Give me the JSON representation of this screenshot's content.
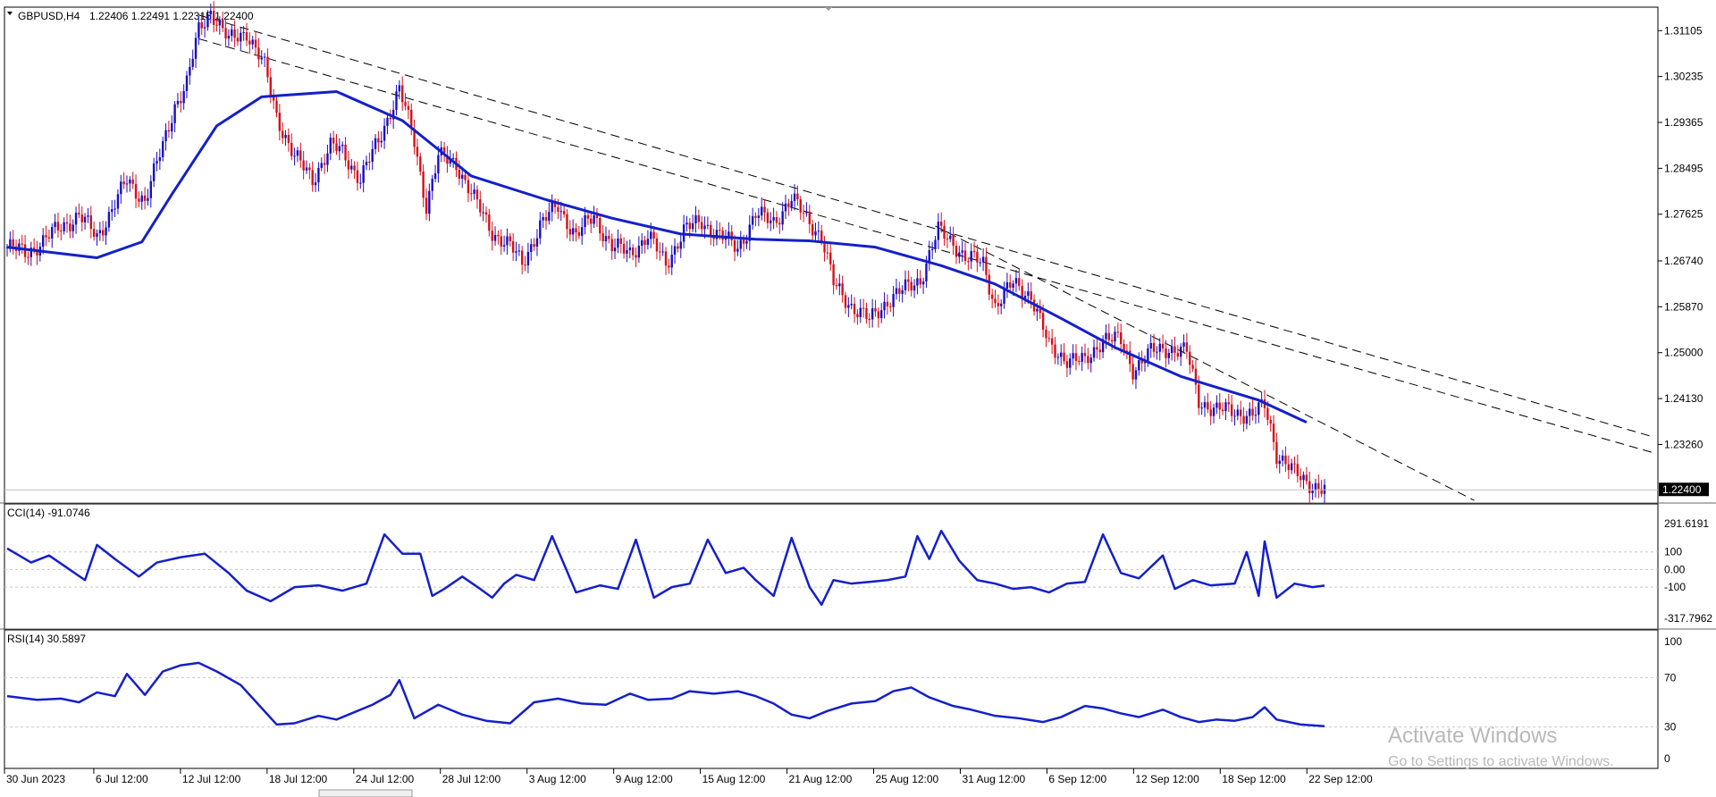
{
  "window": {
    "symbol_header": "GBPUSD,H4",
    "ohlc": "1.22406 1.22491 1.22315 1.22400",
    "bid_price": "1.22400"
  },
  "watermark": {
    "line1": "Activate Windows",
    "line2": "Go to Settings to activate Windows."
  },
  "colors": {
    "bull": "#1a0dbf",
    "bear": "#d4101a",
    "ma": "#1420c8",
    "osc": "#1420c8",
    "grid_dash": "#c8c8c8",
    "border": "#000000"
  },
  "chart_data": [
    {
      "type": "candlestick",
      "symbol": "GBPUSD",
      "timeframe": "H4",
      "x_labels": [
        "30 Jun 2023",
        "6 Jul 12:00",
        "12 Jul 12:00",
        "18 Jul 12:00",
        "24 Jul 12:00",
        "28 Jul 12:00",
        "3 Aug 12:00",
        "9 Aug 12:00",
        "15 Aug 12:00",
        "21 Aug 12:00",
        "25 Aug 12:00",
        "31 Aug 12:00",
        "6 Sep 12:00",
        "12 Sep 12:00",
        "18 Sep 12:00",
        "22 Sep 12:00"
      ],
      "y_ticks": [
        "1.31105",
        "1.30235",
        "1.29365",
        "1.28495",
        "1.27625",
        "1.26740",
        "1.25870",
        "1.25000",
        "1.24130",
        "1.23260"
      ],
      "ylim": [
        1.2215,
        1.3155
      ],
      "current_price": 1.224,
      "close_path": [
        [
          0,
          1.27
        ],
        [
          6,
          1.269
        ],
        [
          12,
          1.271
        ],
        [
          18,
          1.274
        ],
        [
          24,
          1.276
        ],
        [
          30,
          1.272
        ],
        [
          40,
          1.2825
        ],
        [
          46,
          1.279
        ],
        [
          52,
          1.289
        ],
        [
          56,
          1.297
        ],
        [
          60,
          1.301
        ],
        [
          64,
          1.311
        ],
        [
          68,
          1.315
        ],
        [
          74,
          1.309
        ],
        [
          80,
          1.311
        ],
        [
          86,
          1.304
        ],
        [
          90,
          1.295
        ],
        [
          96,
          1.287
        ],
        [
          102,
          1.283
        ],
        [
          108,
          1.289
        ],
        [
          112,
          1.288
        ],
        [
          118,
          1.283
        ],
        [
          124,
          1.29
        ],
        [
          128,
          1.296
        ],
        [
          131,
          1.3
        ],
        [
          136,
          1.29
        ],
        [
          140,
          1.278
        ],
        [
          144,
          1.287
        ],
        [
          150,
          1.286
        ],
        [
          156,
          1.279
        ],
        [
          162,
          1.273
        ],
        [
          168,
          1.27
        ],
        [
          172,
          1.267
        ],
        [
          178,
          1.274
        ],
        [
          184,
          1.278
        ],
        [
          190,
          1.272
        ],
        [
          196,
          1.276
        ],
        [
          202,
          1.27
        ],
        [
          208,
          1.269
        ],
        [
          214,
          1.272
        ],
        [
          220,
          1.267
        ],
        [
          226,
          1.273
        ],
        [
          232,
          1.275
        ],
        [
          238,
          1.272
        ],
        [
          244,
          1.27
        ],
        [
          250,
          1.276
        ],
        [
          256,
          1.275
        ],
        [
          262,
          1.279
        ],
        [
          268,
          1.275
        ],
        [
          272,
          1.272
        ],
        [
          276,
          1.263
        ],
        [
          282,
          1.259
        ],
        [
          288,
          1.256
        ],
        [
          294,
          1.26
        ],
        [
          300,
          1.262
        ],
        [
          305,
          1.264
        ],
        [
          311,
          1.273
        ],
        [
          316,
          1.271
        ],
        [
          320,
          1.268
        ],
        [
          326,
          1.267
        ],
        [
          330,
          1.259
        ],
        [
          336,
          1.263
        ],
        [
          342,
          1.261
        ],
        [
          348,
          1.251
        ],
        [
          354,
          1.249
        ],
        [
          360,
          1.248
        ],
        [
          366,
          1.253
        ],
        [
          372,
          1.252
        ],
        [
          376,
          1.247
        ],
        [
          382,
          1.25
        ],
        [
          388,
          1.251
        ],
        [
          394,
          1.25
        ],
        [
          398,
          1.241
        ],
        [
          404,
          1.239
        ],
        [
          410,
          1.239
        ],
        [
          416,
          1.238
        ],
        [
          420,
          1.24
        ],
        [
          422,
          1.236
        ],
        [
          424,
          1.231
        ],
        [
          430,
          1.227
        ],
        [
          436,
          1.225
        ],
        [
          440,
          1.224
        ]
      ],
      "moving_average_path": [
        [
          0,
          1.27
        ],
        [
          30,
          1.268
        ],
        [
          45,
          1.271
        ],
        [
          55,
          1.28
        ],
        [
          70,
          1.293
        ],
        [
          85,
          1.2985
        ],
        [
          110,
          1.2995
        ],
        [
          132,
          1.294
        ],
        [
          155,
          1.2835
        ],
        [
          180,
          1.279
        ],
        [
          202,
          1.2755
        ],
        [
          225,
          1.2725
        ],
        [
          250,
          1.2715
        ],
        [
          268,
          1.2712
        ],
        [
          290,
          1.27
        ],
        [
          312,
          1.2665
        ],
        [
          330,
          1.263
        ],
        [
          352,
          1.2565
        ],
        [
          370,
          1.251
        ],
        [
          392,
          1.2455
        ],
        [
          418,
          1.241
        ],
        [
          434,
          1.2368
        ]
      ],
      "trendlines": [
        [
          [
            64,
            1.314
          ],
          [
            550,
            1.234
          ]
        ],
        [
          [
            64,
            1.3095
          ],
          [
            550,
            1.231
          ]
        ],
        [
          [
            310,
            1.274
          ],
          [
            490,
            1.222
          ]
        ]
      ]
    },
    {
      "type": "line",
      "name": "CCI(14)",
      "last_value_label": "-91.0746",
      "y_ticks": [
        "291.6191",
        "100",
        "0.00",
        "-100",
        "-317.7962"
      ],
      "ylim": [
        -317.7962,
        291.6191
      ],
      "levels": [
        100,
        0,
        -100
      ],
      "values": [
        [
          0,
          120
        ],
        [
          8,
          40
        ],
        [
          14,
          80
        ],
        [
          20,
          10
        ],
        [
          26,
          -60
        ],
        [
          30,
          140
        ],
        [
          36,
          60
        ],
        [
          44,
          -40
        ],
        [
          50,
          40
        ],
        [
          58,
          70
        ],
        [
          66,
          90
        ],
        [
          74,
          -20
        ],
        [
          80,
          -120
        ],
        [
          88,
          -180
        ],
        [
          96,
          -100
        ],
        [
          104,
          -90
        ],
        [
          112,
          -120
        ],
        [
          120,
          -80
        ],
        [
          126,
          200
        ],
        [
          132,
          90
        ],
        [
          138,
          90
        ],
        [
          142,
          -150
        ],
        [
          146,
          -110
        ],
        [
          152,
          -40
        ],
        [
          158,
          -110
        ],
        [
          162,
          -160
        ],
        [
          166,
          -80
        ],
        [
          170,
          -30
        ],
        [
          176,
          -60
        ],
        [
          182,
          190
        ],
        [
          190,
          -130
        ],
        [
          198,
          -90
        ],
        [
          204,
          -110
        ],
        [
          210,
          170
        ],
        [
          216,
          -160
        ],
        [
          222,
          -100
        ],
        [
          228,
          -80
        ],
        [
          234,
          170
        ],
        [
          240,
          -20
        ],
        [
          246,
          10
        ],
        [
          250,
          -60
        ],
        [
          256,
          -150
        ],
        [
          262,
          180
        ],
        [
          268,
          -100
        ],
        [
          272,
          -200
        ],
        [
          276,
          -60
        ],
        [
          282,
          -80
        ],
        [
          288,
          -70
        ],
        [
          294,
          -60
        ],
        [
          300,
          -40
        ],
        [
          304,
          190
        ],
        [
          308,
          60
        ],
        [
          312,
          220
        ],
        [
          318,
          50
        ],
        [
          324,
          -60
        ],
        [
          330,
          -80
        ],
        [
          336,
          -110
        ],
        [
          342,
          -100
        ],
        [
          348,
          -130
        ],
        [
          354,
          -80
        ],
        [
          360,
          -70
        ],
        [
          366,
          200
        ],
        [
          372,
          -20
        ],
        [
          378,
          -50
        ],
        [
          386,
          80
        ],
        [
          390,
          -110
        ],
        [
          396,
          -60
        ],
        [
          402,
          -90
        ],
        [
          410,
          -80
        ],
        [
          414,
          100
        ],
        [
          418,
          -150
        ],
        [
          420,
          160
        ],
        [
          424,
          -160
        ],
        [
          430,
          -80
        ],
        [
          436,
          -100
        ],
        [
          440,
          -91
        ]
      ]
    },
    {
      "type": "line",
      "name": "RSI(14)",
      "last_value_label": "30.5897",
      "y_ticks": [
        "100",
        "70",
        "30",
        "0"
      ],
      "ylim": [
        0,
        100
      ],
      "levels": [
        70,
        30
      ],
      "values": [
        [
          0,
          55
        ],
        [
          10,
          52
        ],
        [
          18,
          53
        ],
        [
          24,
          50
        ],
        [
          30,
          58
        ],
        [
          36,
          55
        ],
        [
          40,
          73
        ],
        [
          46,
          56
        ],
        [
          52,
          75
        ],
        [
          58,
          80
        ],
        [
          64,
          82
        ],
        [
          70,
          75
        ],
        [
          78,
          64
        ],
        [
          84,
          48
        ],
        [
          90,
          32
        ],
        [
          96,
          33
        ],
        [
          104,
          39
        ],
        [
          110,
          36
        ],
        [
          116,
          42
        ],
        [
          122,
          48
        ],
        [
          128,
          56
        ],
        [
          131,
          68
        ],
        [
          136,
          37
        ],
        [
          144,
          48
        ],
        [
          152,
          40
        ],
        [
          160,
          35
        ],
        [
          168,
          33
        ],
        [
          176,
          50
        ],
        [
          184,
          53
        ],
        [
          192,
          49
        ],
        [
          200,
          48
        ],
        [
          208,
          57
        ],
        [
          214,
          52
        ],
        [
          222,
          53
        ],
        [
          228,
          59
        ],
        [
          236,
          57
        ],
        [
          244,
          59
        ],
        [
          250,
          55
        ],
        [
          256,
          49
        ],
        [
          262,
          40
        ],
        [
          268,
          37
        ],
        [
          274,
          43
        ],
        [
          282,
          49
        ],
        [
          290,
          51
        ],
        [
          296,
          59
        ],
        [
          302,
          62
        ],
        [
          308,
          54
        ],
        [
          316,
          47
        ],
        [
          322,
          44
        ],
        [
          330,
          39
        ],
        [
          338,
          37
        ],
        [
          346,
          34
        ],
        [
          352,
          38
        ],
        [
          360,
          47
        ],
        [
          366,
          45
        ],
        [
          372,
          41
        ],
        [
          378,
          38
        ],
        [
          386,
          44
        ],
        [
          392,
          38
        ],
        [
          398,
          34
        ],
        [
          404,
          36
        ],
        [
          410,
          35
        ],
        [
          416,
          38
        ],
        [
          420,
          46
        ],
        [
          424,
          36
        ],
        [
          432,
          32
        ],
        [
          440,
          30.6
        ]
      ]
    }
  ]
}
